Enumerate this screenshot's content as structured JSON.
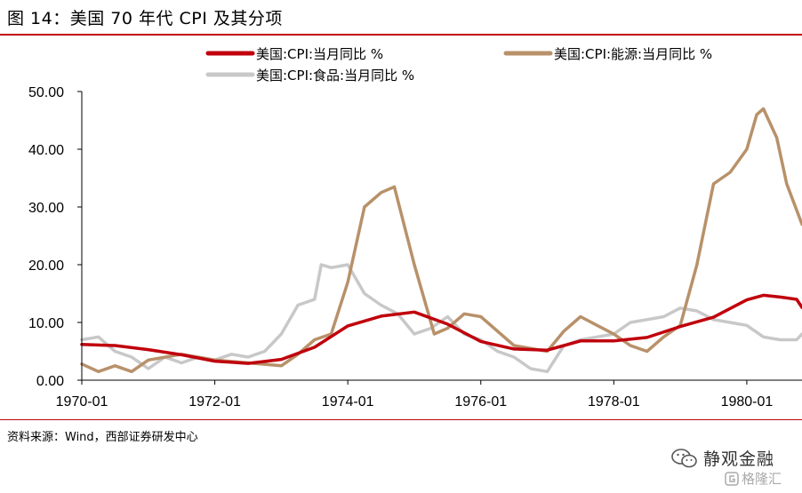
{
  "figure": {
    "title": "图 14：美国 70 年代 CPI 及其分项",
    "source": "资料来源：Wind，西部证券研发中心",
    "watermark": "静观金融",
    "watermark_secondary": "格隆汇"
  },
  "chart_data": {
    "type": "line",
    "title": "",
    "xlabel": "",
    "ylabel": "",
    "ylim": [
      0,
      50
    ],
    "xlim": [
      1970.0,
      1980.83
    ],
    "yticks": [
      "0.00",
      "10.00",
      "20.00",
      "30.00",
      "40.00",
      "50.00"
    ],
    "xticks": [
      "1970-01",
      "1972-01",
      "1974-01",
      "1976-01",
      "1978-01",
      "1980-01"
    ],
    "grid": false,
    "legend_placement": "top",
    "series": [
      {
        "name": "美国:CPI:当月同比 %",
        "color": "#c0000c",
        "x": [
          1970.0,
          1970.5,
          1971.0,
          1971.5,
          1972.0,
          1972.5,
          1973.0,
          1973.5,
          1974.0,
          1974.5,
          1975.0,
          1975.5,
          1976.0,
          1976.5,
          1977.0,
          1977.5,
          1978.0,
          1978.5,
          1979.0,
          1979.5,
          1980.0,
          1980.25,
          1980.5,
          1980.75,
          1980.83
        ],
        "values": [
          6.2,
          6.0,
          5.3,
          4.4,
          3.3,
          2.9,
          3.6,
          5.7,
          9.4,
          11.1,
          11.8,
          9.7,
          6.7,
          5.4,
          5.2,
          6.8,
          6.8,
          7.4,
          9.3,
          10.9,
          13.9,
          14.7,
          14.4,
          14.0,
          12.6
        ]
      },
      {
        "name": "美国:CPI:能源:当月同比 %",
        "color": "#b8916a",
        "x": [
          1970.0,
          1970.25,
          1970.5,
          1970.75,
          1971.0,
          1971.5,
          1972.0,
          1972.5,
          1973.0,
          1973.25,
          1973.5,
          1973.75,
          1974.0,
          1974.25,
          1974.5,
          1974.7,
          1975.0,
          1975.3,
          1975.5,
          1975.75,
          1976.0,
          1976.5,
          1977.0,
          1977.25,
          1977.5,
          1977.75,
          1978.0,
          1978.25,
          1978.5,
          1978.75,
          1979.0,
          1979.25,
          1979.5,
          1979.75,
          1980.0,
          1980.15,
          1980.25,
          1980.45,
          1980.6,
          1980.83
        ],
        "values": [
          2.8,
          1.5,
          2.5,
          1.5,
          3.5,
          4.5,
          3.5,
          3.0,
          2.5,
          4.5,
          7.0,
          8.0,
          17.0,
          30.0,
          32.5,
          33.5,
          20.0,
          8.0,
          9.0,
          11.5,
          11.0,
          6.0,
          5.0,
          8.5,
          11.0,
          9.5,
          8.0,
          6.0,
          5.0,
          7.5,
          9.5,
          20.0,
          34.0,
          36.0,
          40.0,
          46.0,
          47.0,
          42.0,
          34.0,
          27.0
        ]
      },
      {
        "name": "美国:CPI:食品:当月同比 %",
        "color": "#c8c8c8",
        "x": [
          1970.0,
          1970.25,
          1970.5,
          1970.75,
          1971.0,
          1971.25,
          1971.5,
          1971.75,
          1972.0,
          1972.25,
          1972.5,
          1972.75,
          1973.0,
          1973.25,
          1973.5,
          1973.6,
          1973.75,
          1974.0,
          1974.25,
          1974.5,
          1974.75,
          1975.0,
          1975.25,
          1975.5,
          1975.75,
          1976.0,
          1976.25,
          1976.5,
          1976.75,
          1977.0,
          1977.25,
          1977.5,
          1977.75,
          1978.0,
          1978.25,
          1978.5,
          1978.75,
          1979.0,
          1979.25,
          1979.5,
          1979.75,
          1980.0,
          1980.25,
          1980.5,
          1980.75,
          1980.83
        ],
        "values": [
          7.0,
          7.5,
          5.0,
          4.0,
          2.0,
          4.0,
          3.0,
          4.0,
          3.5,
          4.5,
          4.0,
          5.0,
          8.0,
          13.0,
          14.0,
          20.0,
          19.5,
          20.0,
          15.0,
          13.0,
          11.5,
          8.0,
          9.0,
          11.0,
          8.0,
          7.0,
          5.0,
          4.0,
          2.0,
          1.5,
          6.0,
          7.0,
          7.5,
          8.0,
          10.0,
          10.5,
          11.0,
          12.5,
          12.0,
          10.5,
          10.0,
          9.5,
          7.5,
          7.0,
          7.0,
          8.0
        ]
      }
    ]
  }
}
